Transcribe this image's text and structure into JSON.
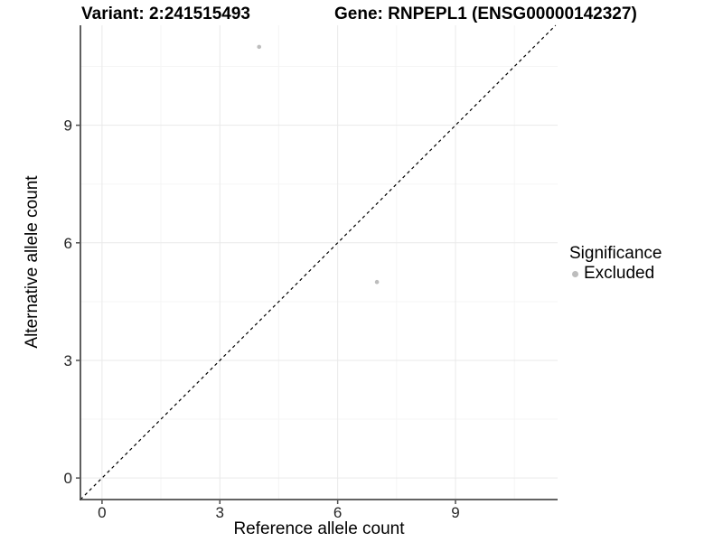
{
  "title": {
    "variant": "Variant: 2:241515493",
    "gene": "Gene: RNPEPL1 (ENSG00000142327)"
  },
  "axes": {
    "x_label": "Reference allele count",
    "y_label": "Alternative allele count"
  },
  "legend": {
    "title": "Significance",
    "items": [
      {
        "label": "Excluded",
        "color": "#bdbdbd"
      }
    ]
  },
  "chart_data": {
    "type": "scatter",
    "title": "Variant: 2:241515493 — Gene: RNPEPL1 (ENSG00000142327)",
    "xlabel": "Reference allele count",
    "ylabel": "Alternative allele count",
    "xlim": [
      -0.55,
      11.6
    ],
    "ylim": [
      -0.55,
      11.55
    ],
    "x_ticks": [
      0,
      3,
      6,
      9
    ],
    "y_ticks": [
      0,
      3,
      6,
      9
    ],
    "x_minor_ticks": [
      1.5,
      4.5,
      7.5,
      10.5
    ],
    "y_minor_ticks": [
      1.5,
      4.5,
      7.5,
      10.5
    ],
    "grid": true,
    "legend_position": "right",
    "reference_line": {
      "type": "identity",
      "slope": 1,
      "intercept": 0,
      "style": "dashed"
    },
    "series": [
      {
        "name": "Excluded",
        "color": "#bdbdbd",
        "points": [
          [
            4,
            11
          ],
          [
            7,
            5
          ]
        ]
      }
    ]
  },
  "colors": {
    "point": "#bdbdbd",
    "grid_major": "#e9e9e9",
    "grid_minor": "#f5f5f5",
    "axis_line": "#4d4d4d",
    "tick_text": "#262626",
    "dashed_line": "#000000",
    "background": "#ffffff"
  }
}
